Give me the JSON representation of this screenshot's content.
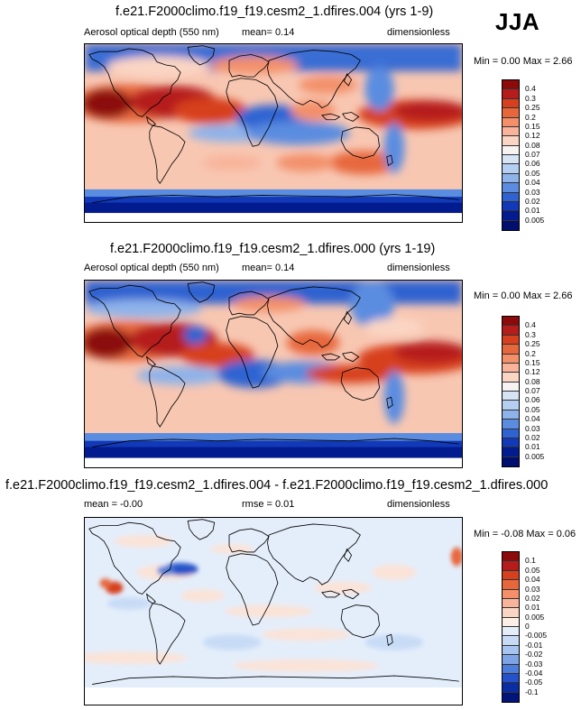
{
  "season": "JJA",
  "panels": [
    {
      "title": "f.e21.F2000climo.f19_f19.cesm2_1.dfires.004 (yrs 1-9)",
      "variable": "Aerosol optical depth (550 nm)",
      "stat1": "mean=  0.14",
      "stat2": "",
      "units": "dimensionless",
      "minmax": "Min =  0.00 Max =  2.66",
      "colorbar_labels": [
        "0.4",
        "0.3",
        "0.25",
        "0.2",
        "0.15",
        "0.12",
        "0.08",
        "0.07",
        "0.06",
        "0.05",
        "0.04",
        "0.03",
        "0.02",
        "0.01",
        "0.005"
      ],
      "colorbar_colors": [
        "#8c0a0a",
        "#b51c1c",
        "#d7401f",
        "#e7673c",
        "#f3906a",
        "#f8b39a",
        "#fbd5c4",
        "#f7f3f3",
        "#d6e4f6",
        "#b5cff2",
        "#8eb2ea",
        "#5a8ce0",
        "#2f63d2",
        "#1239b8",
        "#021b8e",
        "#000f6e"
      ]
    },
    {
      "title": "f.e21.F2000climo.f19_f19.cesm2_1.dfires.000 (yrs 1-19)",
      "variable": "Aerosol optical depth (550 nm)",
      "stat1": "mean=  0.14",
      "stat2": "",
      "units": "dimensionless",
      "minmax": "Min =  0.00 Max =  2.66",
      "colorbar_labels": [
        "0.4",
        "0.3",
        "0.25",
        "0.2",
        "0.15",
        "0.12",
        "0.08",
        "0.07",
        "0.06",
        "0.05",
        "0.04",
        "0.03",
        "0.02",
        "0.01",
        "0.005"
      ],
      "colorbar_colors": [
        "#8c0a0a",
        "#b51c1c",
        "#d7401f",
        "#e7673c",
        "#f3906a",
        "#f8b39a",
        "#fbd5c4",
        "#f7f3f3",
        "#d6e4f6",
        "#b5cff2",
        "#8eb2ea",
        "#5a8ce0",
        "#2f63d2",
        "#1239b8",
        "#021b8e",
        "#000f6e"
      ]
    },
    {
      "title": "f.e21.F2000climo.f19_f19.cesm2_1.dfires.004 - f.e21.F2000climo.f19_f19.cesm2_1.dfires.000",
      "variable": "",
      "stat1": "mean = -0.00",
      "stat2": "rmse =  0.01",
      "units": "dimensionless",
      "minmax": "Min = -0.08 Max =  0.06",
      "colorbar_labels": [
        "0.1",
        "0.05",
        "0.04",
        "0.03",
        "0.02",
        "0.01",
        "0.005",
        "0",
        "-0.005",
        "-0.01",
        "-0.02",
        "-0.03",
        "-0.04",
        "-0.05",
        "-0.1"
      ],
      "colorbar_colors": [
        "#8c0a0a",
        "#b51c1c",
        "#d7401f",
        "#e7673c",
        "#f3906a",
        "#f8b39a",
        "#fbd5c4",
        "#fdeee6",
        "#e4eefb",
        "#c8dbf6",
        "#a7c3ef",
        "#7ea4e6",
        "#4d7ddb",
        "#2552c8",
        "#0b2da3",
        "#00147a"
      ]
    }
  ]
}
